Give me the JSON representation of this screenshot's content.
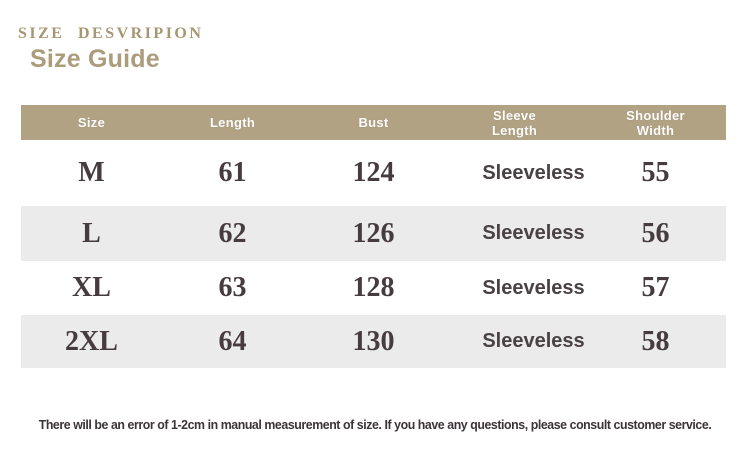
{
  "header": {
    "eyebrow": "SIZE DESVRIPION",
    "title": "Size Guide"
  },
  "table": {
    "columns": [
      "Size",
      "Length",
      "Bust",
      "Sleeve\nLength",
      "Shoulder\nWidth"
    ],
    "rows": [
      [
        "M",
        "61",
        "124",
        "Sleeveless",
        "55"
      ],
      [
        "L",
        "62",
        "126",
        "Sleeveless",
        "56"
      ],
      [
        "XL",
        "63",
        "128",
        "Sleeveless",
        "57"
      ],
      [
        "2XL",
        "64",
        "130",
        "Sleeveless",
        "58"
      ]
    ]
  },
  "footer": {
    "note": "There will be an error of 1-2cm in manual measurement of size. If you have any questions, please consult customer service."
  },
  "colors": {
    "header_bg": "#b1a284",
    "header_text": "#ffffff",
    "row_alt_bg": "#ebebeb",
    "accent_text": "#a69672",
    "body_text": "#463c40",
    "footnote_text": "#3b3438"
  }
}
